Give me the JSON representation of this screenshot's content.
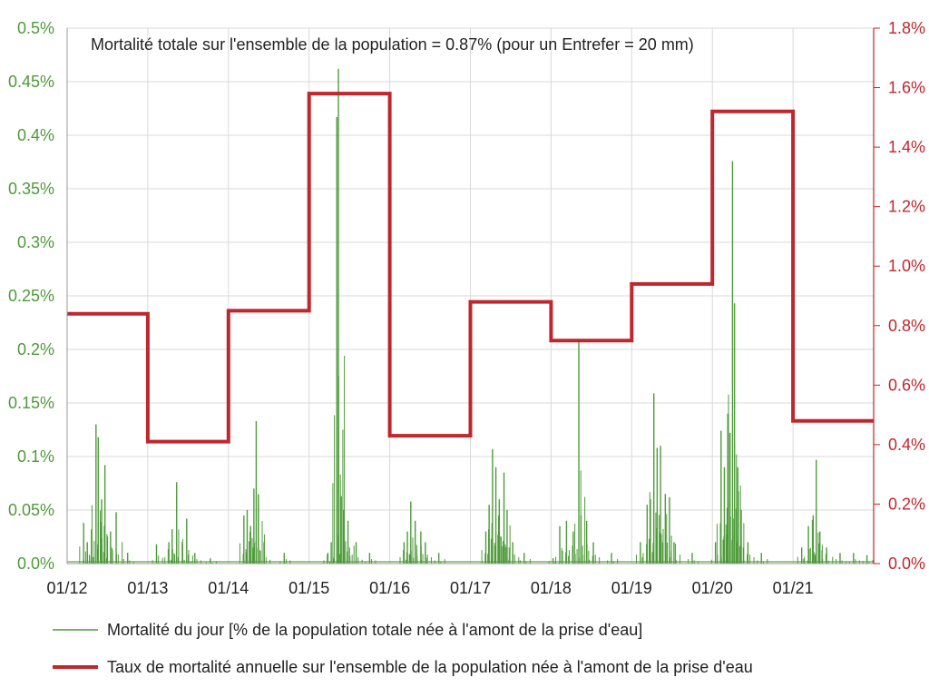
{
  "chart_data": {
    "type": "line",
    "title": "",
    "annotation": "Mortalité totale sur l'ensemble de la population = 0.87% (pour un Entrefer = 20 mm)",
    "grid": true,
    "legend_position": "bottom",
    "x_tick_labels": [
      "01/12",
      "01/13",
      "01/14",
      "01/15",
      "01/16",
      "01/17",
      "01/18",
      "01/19",
      "01/20",
      "01/21"
    ],
    "x_range": [
      "2012-01",
      "2021-12"
    ],
    "y_left": {
      "ticks": [
        "0.0%",
        "0.05%",
        "0.1%",
        "0.15%",
        "0.2%",
        "0.25%",
        "0.3%",
        "0.35%",
        "0.4%",
        "0.45%",
        "0.5%"
      ],
      "range": [
        0,
        0.5
      ],
      "color": "#4e9a3a"
    },
    "y_right": {
      "ticks": [
        "0.0%",
        "0.2%",
        "0.4%",
        "0.6%",
        "0.8%",
        "1.0%",
        "1.2%",
        "1.4%",
        "1.6%",
        "1.8%"
      ],
      "range": [
        0,
        1.8
      ],
      "color": "#c0262d"
    },
    "series": [
      {
        "name": "Mortalité du jour [% de la population totale née à l'amont de la prise d'eau]",
        "axis": "left",
        "color": "#4e9a3a",
        "type": "spike",
        "note": "daily values, main peaks read from chart",
        "points": [
          [
            "2012-03-15",
            0.038
          ],
          [
            "2012-04-01",
            0.02
          ],
          [
            "2012-04-20",
            0.032
          ],
          [
            "2012-05-10",
            0.13
          ],
          [
            "2012-05-20",
            0.118
          ],
          [
            "2012-06-05",
            0.06
          ],
          [
            "2012-06-20",
            0.092
          ],
          [
            "2012-07-15",
            0.03
          ],
          [
            "2012-08-10",
            0.048
          ],
          [
            "2012-10-01",
            0.01
          ],
          [
            "2013-02-10",
            0.018
          ],
          [
            "2013-04-05",
            0.02
          ],
          [
            "2013-04-20",
            0.032
          ],
          [
            "2013-05-10",
            0.076
          ],
          [
            "2013-06-05",
            0.02
          ],
          [
            "2013-06-25",
            0.042
          ],
          [
            "2013-08-01",
            0.01
          ],
          [
            "2013-10-10",
            0.005
          ],
          [
            "2014-03-10",
            0.045
          ],
          [
            "2014-03-25",
            0.05
          ],
          [
            "2014-04-10",
            0.035
          ],
          [
            "2014-04-25",
            0.07
          ],
          [
            "2014-05-05",
            0.133
          ],
          [
            "2014-05-15",
            0.065
          ],
          [
            "2014-06-10",
            0.02
          ],
          [
            "2014-09-10",
            0.01
          ],
          [
            "2015-03-25",
            0.01
          ],
          [
            "2015-04-10",
            0.02
          ],
          [
            "2015-05-05",
            0.417
          ],
          [
            "2015-05-12",
            0.462
          ],
          [
            "2015-05-25",
            0.063
          ],
          [
            "2015-06-05",
            0.05
          ],
          [
            "2015-06-25",
            0.04
          ],
          [
            "2015-08-01",
            0.02
          ],
          [
            "2015-10-01",
            0.01
          ],
          [
            "2016-03-05",
            0.02
          ],
          [
            "2016-03-20",
            0.03
          ],
          [
            "2016-04-05",
            0.058
          ],
          [
            "2016-04-25",
            0.04
          ],
          [
            "2016-05-20",
            0.03
          ],
          [
            "2016-06-10",
            0.02
          ],
          [
            "2016-08-10",
            0.01
          ],
          [
            "2017-03-10",
            0.03
          ],
          [
            "2017-03-25",
            0.055
          ],
          [
            "2017-04-10",
            0.107
          ],
          [
            "2017-04-25",
            0.09
          ],
          [
            "2017-05-10",
            0.06
          ],
          [
            "2017-06-01",
            0.085
          ],
          [
            "2017-06-15",
            0.05
          ],
          [
            "2017-07-10",
            0.02
          ],
          [
            "2017-09-01",
            0.01
          ],
          [
            "2018-01-10",
            0.005
          ],
          [
            "2018-02-10",
            0.035
          ],
          [
            "2018-03-10",
            0.04
          ],
          [
            "2018-04-10",
            0.03
          ],
          [
            "2018-05-05",
            0.207
          ],
          [
            "2018-05-15",
            0.045
          ],
          [
            "2018-06-10",
            0.04
          ],
          [
            "2018-07-10",
            0.02
          ],
          [
            "2018-10-01",
            0.01
          ],
          [
            "2019-02-10",
            0.02
          ],
          [
            "2019-03-10",
            0.055
          ],
          [
            "2019-03-25",
            0.06
          ],
          [
            "2019-04-10",
            0.159
          ],
          [
            "2019-04-25",
            0.108
          ],
          [
            "2019-05-10",
            0.11
          ],
          [
            "2019-06-01",
            0.065
          ],
          [
            "2019-06-20",
            0.062
          ],
          [
            "2019-07-10",
            0.02
          ],
          [
            "2019-10-01",
            0.01
          ],
          [
            "2020-01-15",
            0.02
          ],
          [
            "2020-02-10",
            0.124
          ],
          [
            "2020-02-25",
            0.09
          ],
          [
            "2020-03-10",
            0.14
          ],
          [
            "2020-03-20",
            0.122
          ],
          [
            "2020-04-01",
            0.376
          ],
          [
            "2020-04-10",
            0.243
          ],
          [
            "2020-04-25",
            0.09
          ],
          [
            "2020-05-10",
            0.05
          ],
          [
            "2020-06-10",
            0.02
          ],
          [
            "2020-08-10",
            0.01
          ],
          [
            "2021-02-10",
            0.015
          ],
          [
            "2021-03-10",
            0.035
          ],
          [
            "2021-04-01",
            0.045
          ],
          [
            "2021-04-15",
            0.097
          ],
          [
            "2021-05-01",
            0.03
          ],
          [
            "2021-06-01",
            0.015
          ],
          [
            "2021-08-01",
            0.01
          ],
          [
            "2021-10-01",
            0.01
          ],
          [
            "2021-12-01",
            0.008
          ]
        ]
      },
      {
        "name": "Taux de mortalité annuelle sur l'ensemble de la population née à l'amont de la prise d'eau",
        "axis": "right",
        "color": "#c0262d",
        "type": "step",
        "years": [
          "2012",
          "2013",
          "2014",
          "2015",
          "2016",
          "2017",
          "2018",
          "2019",
          "2020",
          "2021"
        ],
        "values": [
          0.84,
          0.41,
          0.85,
          1.58,
          0.43,
          0.88,
          0.75,
          0.94,
          1.52,
          0.48
        ]
      }
    ]
  }
}
